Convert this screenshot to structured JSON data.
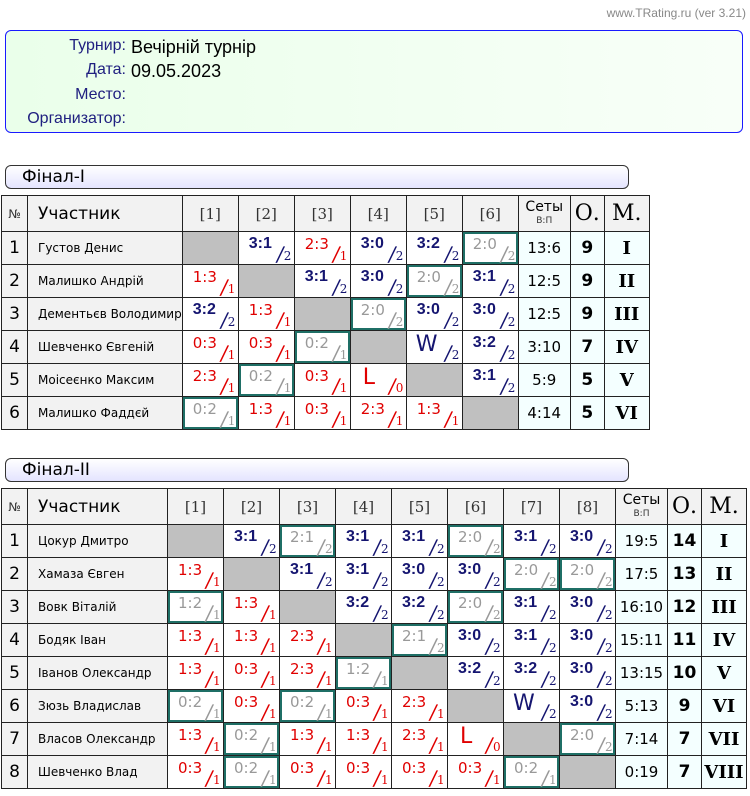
{
  "version": "www.TRating.ru (ver 3.21)",
  "info": {
    "tournament_label": "Турнир:",
    "tournament": "Вечірній турнір",
    "date_label": "Дата:",
    "date": "09.05.2023",
    "place_label": "Место:",
    "place": "",
    "organizer_label": "Организатор:",
    "organizer": ""
  },
  "header": {
    "num": "№",
    "participant": "Участник",
    "sets": "Сеты",
    "sets_sub": "В:П",
    "points": "О.",
    "place": "М."
  },
  "colors": {
    "win": "#151570",
    "loss": "#e00000",
    "tech": "#999999",
    "tech_border": "#1f6f66",
    "self": "#c0c0c0"
  },
  "groups": [
    {
      "title": "Фінал-I",
      "cols": [
        "[1]",
        "[2]",
        "[3]",
        "[4]",
        "[5]",
        "[6]"
      ],
      "rows": [
        {
          "n": "1",
          "name": "Густов Денис",
          "cells": [
            null,
            [
              "3:1",
              "2",
              "w"
            ],
            [
              "2:3",
              "1",
              "l"
            ],
            [
              "3:0",
              "2",
              "w"
            ],
            [
              "3:2",
              "2",
              "w"
            ],
            [
              "2:0",
              "2",
              "t"
            ]
          ],
          "sets": "13:6",
          "pts": "9",
          "place": "I"
        },
        {
          "n": "2",
          "name": "Малишко Андрій",
          "cells": [
            [
              "1:3",
              "1",
              "l"
            ],
            null,
            [
              "3:1",
              "2",
              "w"
            ],
            [
              "3:0",
              "2",
              "w"
            ],
            [
              "2:0",
              "2",
              "t"
            ],
            [
              "3:1",
              "2",
              "w"
            ]
          ],
          "sets": "12:5",
          "pts": "9",
          "place": "II"
        },
        {
          "n": "3",
          "name": "Дементьєв Володимир",
          "cells": [
            [
              "3:2",
              "2",
              "w"
            ],
            [
              "1:3",
              "1",
              "l"
            ],
            null,
            [
              "2:0",
              "2",
              "t"
            ],
            [
              "3:0",
              "2",
              "w"
            ],
            [
              "3:0",
              "2",
              "w"
            ]
          ],
          "sets": "12:5",
          "pts": "9",
          "place": "III"
        },
        {
          "n": "4",
          "name": "Шевченко Євгеній",
          "cells": [
            [
              "0:3",
              "1",
              "l"
            ],
            [
              "0:3",
              "1",
              "l"
            ],
            [
              "0:2",
              "1",
              "t"
            ],
            null,
            [
              "W",
              "2",
              "W"
            ],
            [
              "3:2",
              "2",
              "w"
            ]
          ],
          "sets": "3:10",
          "pts": "7",
          "place": "IV"
        },
        {
          "n": "5",
          "name": "Моісеєнко Максим",
          "cells": [
            [
              "2:3",
              "1",
              "l"
            ],
            [
              "0:2",
              "1",
              "t"
            ],
            [
              "0:3",
              "1",
              "l"
            ],
            [
              "L",
              "0",
              "L"
            ],
            null,
            [
              "3:1",
              "2",
              "w"
            ]
          ],
          "sets": "5:9",
          "pts": "5",
          "place": "V"
        },
        {
          "n": "6",
          "name": "Малишко Фаддєй",
          "cells": [
            [
              "0:2",
              "1",
              "t"
            ],
            [
              "1:3",
              "1",
              "l"
            ],
            [
              "0:3",
              "1",
              "l"
            ],
            [
              "2:3",
              "1",
              "l"
            ],
            [
              "1:3",
              "1",
              "l"
            ],
            null
          ],
          "sets": "4:14",
          "pts": "5",
          "place": "VI"
        }
      ]
    },
    {
      "title": "Фінал-II",
      "cols": [
        "[1]",
        "[2]",
        "[3]",
        "[4]",
        "[5]",
        "[6]",
        "[7]",
        "[8]"
      ],
      "rows": [
        {
          "n": "1",
          "name": "Цокур Дмитро",
          "cells": [
            null,
            [
              "3:1",
              "2",
              "w"
            ],
            [
              "2:1",
              "2",
              "t"
            ],
            [
              "3:1",
              "2",
              "w"
            ],
            [
              "3:1",
              "2",
              "w"
            ],
            [
              "2:0",
              "2",
              "t"
            ],
            [
              "3:1",
              "2",
              "w"
            ],
            [
              "3:0",
              "2",
              "w"
            ]
          ],
          "sets": "19:5",
          "pts": "14",
          "place": "I"
        },
        {
          "n": "2",
          "name": "Хамаза Євген",
          "cells": [
            [
              "1:3",
              "1",
              "l"
            ],
            null,
            [
              "3:1",
              "2",
              "w"
            ],
            [
              "3:1",
              "2",
              "w"
            ],
            [
              "3:0",
              "2",
              "w"
            ],
            [
              "3:0",
              "2",
              "w"
            ],
            [
              "2:0",
              "2",
              "t"
            ],
            [
              "2:0",
              "2",
              "t"
            ]
          ],
          "sets": "17:5",
          "pts": "13",
          "place": "II"
        },
        {
          "n": "3",
          "name": "Вовк Віталій",
          "cells": [
            [
              "1:2",
              "1",
              "t"
            ],
            [
              "1:3",
              "1",
              "l"
            ],
            null,
            [
              "3:2",
              "2",
              "w"
            ],
            [
              "3:2",
              "2",
              "w"
            ],
            [
              "2:0",
              "2",
              "t"
            ],
            [
              "3:1",
              "2",
              "w"
            ],
            [
              "3:0",
              "2",
              "w"
            ]
          ],
          "sets": "16:10",
          "pts": "12",
          "place": "III"
        },
        {
          "n": "4",
          "name": "Бодяк Іван",
          "cells": [
            [
              "1:3",
              "1",
              "l"
            ],
            [
              "1:3",
              "1",
              "l"
            ],
            [
              "2:3",
              "1",
              "l"
            ],
            null,
            [
              "2:1",
              "2",
              "t"
            ],
            [
              "3:0",
              "2",
              "w"
            ],
            [
              "3:1",
              "2",
              "w"
            ],
            [
              "3:0",
              "2",
              "w"
            ]
          ],
          "sets": "15:11",
          "pts": "11",
          "place": "IV"
        },
        {
          "n": "5",
          "name": "Іванов Олександр",
          "cells": [
            [
              "1:3",
              "1",
              "l"
            ],
            [
              "0:3",
              "1",
              "l"
            ],
            [
              "2:3",
              "1",
              "l"
            ],
            [
              "1:2",
              "1",
              "t"
            ],
            null,
            [
              "3:2",
              "2",
              "w"
            ],
            [
              "3:2",
              "2",
              "w"
            ],
            [
              "3:0",
              "2",
              "w"
            ]
          ],
          "sets": "13:15",
          "pts": "10",
          "place": "V"
        },
        {
          "n": "6",
          "name": "Зюзь Владислав",
          "cells": [
            [
              "0:2",
              "1",
              "t"
            ],
            [
              "0:3",
              "1",
              "l"
            ],
            [
              "0:2",
              "1",
              "t"
            ],
            [
              "0:3",
              "1",
              "l"
            ],
            [
              "2:3",
              "1",
              "l"
            ],
            null,
            [
              "W",
              "2",
              "W"
            ],
            [
              "3:0",
              "2",
              "w"
            ]
          ],
          "sets": "5:13",
          "pts": "9",
          "place": "VI"
        },
        {
          "n": "7",
          "name": "Власов Олександр",
          "cells": [
            [
              "1:3",
              "1",
              "l"
            ],
            [
              "0:2",
              "1",
              "t"
            ],
            [
              "1:3",
              "1",
              "l"
            ],
            [
              "1:3",
              "1",
              "l"
            ],
            [
              "2:3",
              "1",
              "l"
            ],
            [
              "L",
              "0",
              "L"
            ],
            null,
            [
              "2:0",
              "2",
              "t"
            ]
          ],
          "sets": "7:14",
          "pts": "7",
          "place": "VII"
        },
        {
          "n": "8",
          "name": "Шевченко Влад",
          "cells": [
            [
              "0:3",
              "1",
              "l"
            ],
            [
              "0:2",
              "1",
              "t"
            ],
            [
              "0:3",
              "1",
              "l"
            ],
            [
              "0:3",
              "1",
              "l"
            ],
            [
              "0:3",
              "1",
              "l"
            ],
            [
              "0:3",
              "1",
              "l"
            ],
            [
              "0:2",
              "1",
              "t"
            ],
            null
          ],
          "sets": "0:19",
          "pts": "7",
          "place": "VIII"
        }
      ]
    }
  ]
}
